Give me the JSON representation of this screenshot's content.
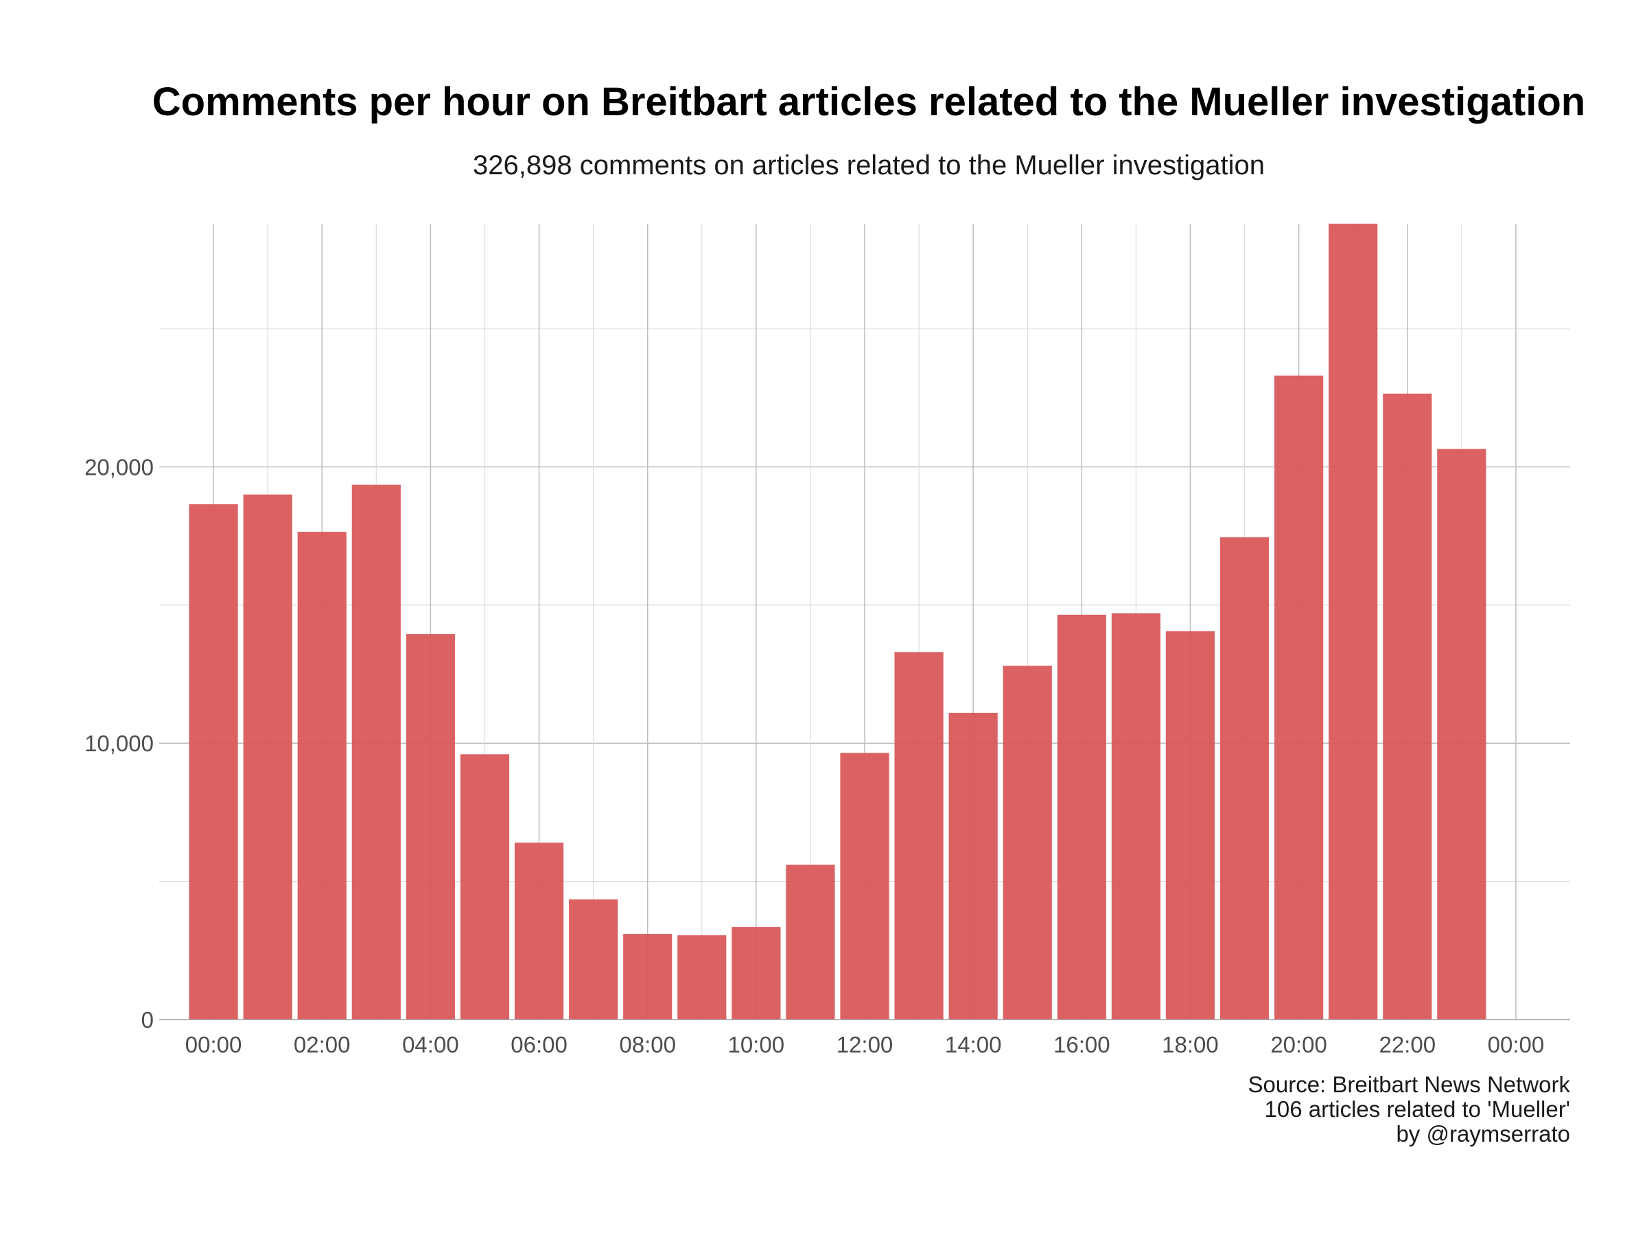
{
  "chart_data": {
    "type": "bar",
    "title": "Comments per hour on Breitbart articles related to the Mueller investigation",
    "subtitle": "326,898 comments on articles related to the Mueller investigation",
    "xlabel": "",
    "ylabel": "",
    "x_hours": [
      0,
      1,
      2,
      3,
      4,
      5,
      6,
      7,
      8,
      9,
      10,
      11,
      12,
      13,
      14,
      15,
      16,
      17,
      18,
      19,
      20,
      21,
      22,
      23
    ],
    "values": [
      18650,
      19000,
      17650,
      19350,
      13950,
      9600,
      6400,
      4350,
      3100,
      3050,
      3350,
      5600,
      9650,
      13300,
      11100,
      12800,
      14650,
      14700,
      14050,
      17450,
      23300,
      28800,
      22650,
      20650
    ],
    "x_tick_labels": [
      "00:00",
      "02:00",
      "04:00",
      "06:00",
      "08:00",
      "10:00",
      "12:00",
      "14:00",
      "16:00",
      "18:00",
      "20:00",
      "22:00",
      "00:00"
    ],
    "x_tick_hours": [
      0,
      2,
      4,
      6,
      8,
      10,
      12,
      14,
      16,
      18,
      20,
      22,
      24
    ],
    "y_tick_labels": [
      "0",
      "10,000",
      "20,000"
    ],
    "y_tick_values": [
      0,
      10000,
      20000
    ],
    "y_minor_values": [
      5000,
      15000,
      25000
    ],
    "xlim": [
      -1,
      25
    ],
    "ylim": [
      0,
      28800
    ],
    "grid": true,
    "bar_color": "#d95557",
    "caption": [
      "Source: Breitbart News Network",
      "106 articles related to 'Mueller'",
      "by @raymserrato"
    ]
  }
}
